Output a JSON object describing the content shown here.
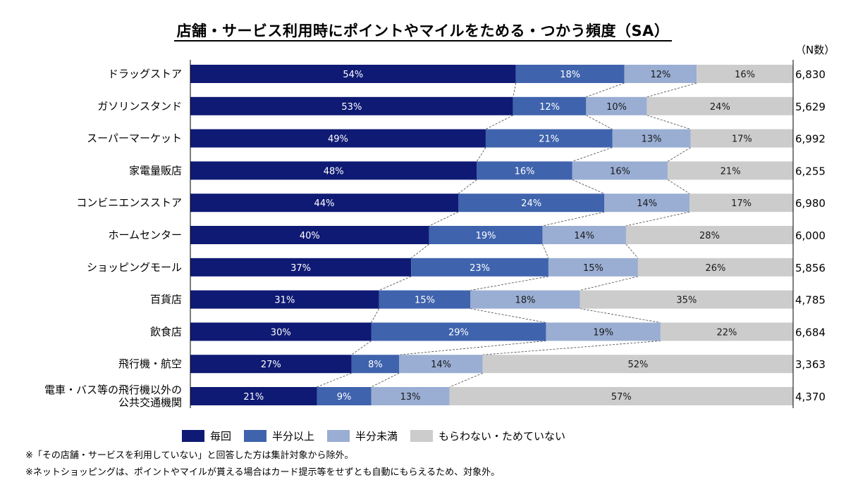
{
  "title": "店舗・サービス利用時にポイントやマイルをためる・つかう頻度（SA）",
  "n_header": "（N数）",
  "colors": [
    "#0f1a74",
    "#3f63ad",
    "#9aaed3",
    "#cccccc"
  ],
  "label_colors": [
    "#ffffff",
    "#ffffff",
    "#1a1a1a",
    "#1a1a1a"
  ],
  "legend": [
    "毎回",
    "半分以上",
    "半分未満",
    "もらわない・ためていない"
  ],
  "notes": [
    "※「その店舗・サービスを利用していない」と回答した方は集計対象から除外。",
    "※ネットショッピングは、ポイントやマイルが貰える場合はカード提示等をせずとも自動にもらえるため、対象外。"
  ],
  "chart_data": {
    "type": "bar",
    "orientation": "horizontal",
    "stacked": "percent",
    "title": "店舗・サービス利用時にポイントやマイルをためる・つかう頻度（SA）",
    "categories": [
      "ドラッグストア",
      "ガソリンスタンド",
      "スーパーマーケット",
      "家電量販店",
      "コンビニエンスストア",
      "ホームセンター",
      "ショッピングモール",
      "百貨店",
      "飲食店",
      "飛行機・航空",
      "電車・バス等の飛行機以外の\n公共交通機関"
    ],
    "series": [
      {
        "name": "毎回",
        "values": [
          54,
          53,
          49,
          48,
          44,
          40,
          37,
          31,
          30,
          27,
          21
        ]
      },
      {
        "name": "半分以上",
        "values": [
          18,
          12,
          21,
          16,
          24,
          19,
          23,
          15,
          29,
          8,
          9
        ]
      },
      {
        "name": "半分未満",
        "values": [
          12,
          10,
          13,
          16,
          14,
          14,
          15,
          18,
          19,
          14,
          13
        ]
      },
      {
        "name": "もらわない・ためていない",
        "values": [
          16,
          24,
          17,
          21,
          17,
          28,
          26,
          35,
          22,
          52,
          57
        ]
      }
    ],
    "n_values": [
      "6,830",
      "5,629",
      "6,992",
      "6,255",
      "6,980",
      "6,000",
      "5,856",
      "4,785",
      "6,684",
      "3,363",
      "4,370"
    ],
    "value_format": "percent",
    "connector_lines": "dashed",
    "legend_position": "bottom"
  }
}
